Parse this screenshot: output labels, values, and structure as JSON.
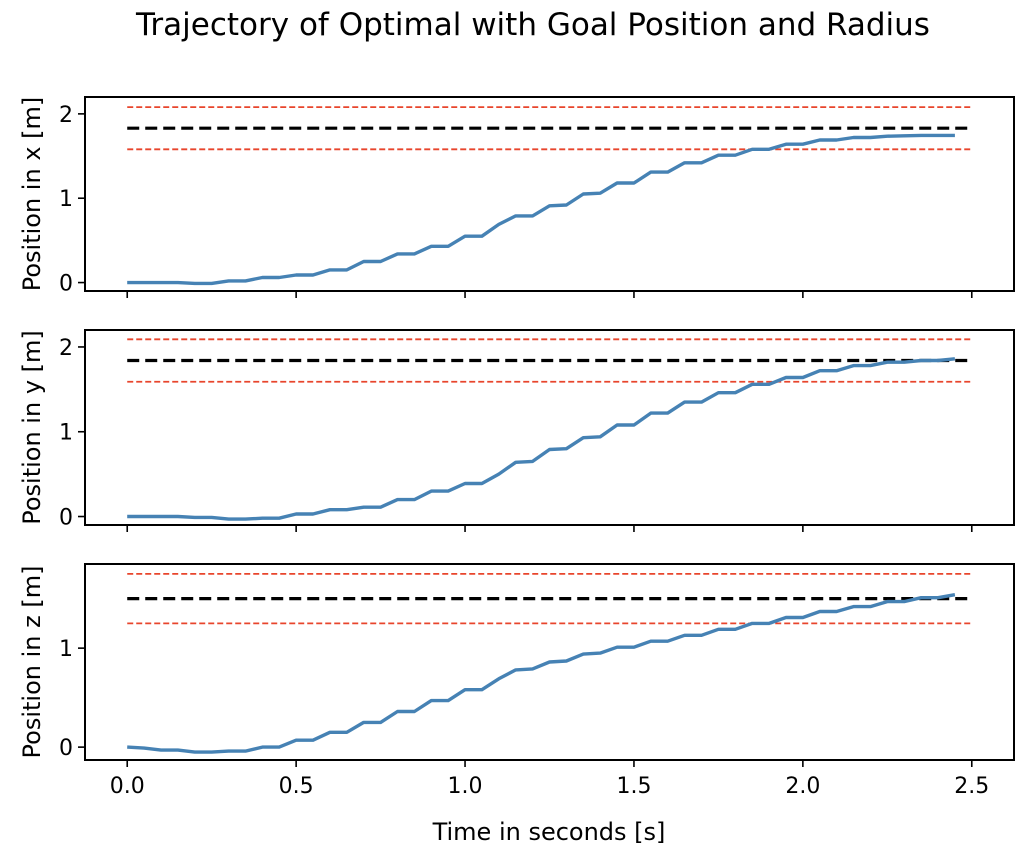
{
  "chart_data": {
    "type": "line",
    "title": "Trajectory of Optimal with Goal Position and Radius",
    "xlabel": "Time in seconds [s]",
    "x_ticks": [
      "0.0",
      "0.5",
      "1.0",
      "1.5",
      "2.0",
      "2.5"
    ],
    "x_tick_values": [
      0.0,
      0.5,
      1.0,
      1.5,
      2.0,
      2.5
    ],
    "xlim": [
      -0.125,
      2.625
    ],
    "grid": false,
    "colors": {
      "trajectory": "#4682b4",
      "goal": "#000000",
      "radius": "#e8452c"
    },
    "subplots": [
      {
        "ylabel": "Position in x [m]",
        "ylim": [
          -0.1,
          2.2
        ],
        "y_ticks": [
          "0",
          "1",
          "2"
        ],
        "y_tick_values": [
          0,
          1,
          2
        ],
        "goal": 1.83,
        "radius_lines": [
          1.58,
          2.08
        ],
        "x": [
          0.0,
          0.05,
          0.1,
          0.15,
          0.2,
          0.25,
          0.3,
          0.35,
          0.4,
          0.45,
          0.5,
          0.55,
          0.6,
          0.65,
          0.7,
          0.75,
          0.8,
          0.85,
          0.9,
          0.95,
          1.0,
          1.05,
          1.1,
          1.15,
          1.2,
          1.25,
          1.3,
          1.35,
          1.4,
          1.45,
          1.5,
          1.55,
          1.6,
          1.65,
          1.7,
          1.75,
          1.8,
          1.85,
          1.9,
          1.95,
          2.0,
          2.05,
          2.1,
          2.15,
          2.2,
          2.25,
          2.3,
          2.35,
          2.4,
          2.45
        ],
        "y": [
          0.0,
          0.0,
          0.0,
          0.0,
          -0.01,
          -0.01,
          0.02,
          0.02,
          0.06,
          0.06,
          0.09,
          0.09,
          0.15,
          0.15,
          0.25,
          0.25,
          0.34,
          0.34,
          0.43,
          0.43,
          0.55,
          0.55,
          0.69,
          0.79,
          0.79,
          0.91,
          0.92,
          1.05,
          1.06,
          1.18,
          1.18,
          1.31,
          1.31,
          1.42,
          1.42,
          1.51,
          1.51,
          1.58,
          1.58,
          1.64,
          1.64,
          1.69,
          1.69,
          1.72,
          1.72,
          1.735,
          1.74,
          1.745,
          1.745,
          1.745
        ]
      },
      {
        "ylabel": "Position in y [m]",
        "ylim": [
          -0.1,
          2.2
        ],
        "y_ticks": [
          "0",
          "1",
          "2"
        ],
        "y_tick_values": [
          0,
          1,
          2
        ],
        "goal": 1.84,
        "radius_lines": [
          1.59,
          2.09
        ],
        "x": [
          0.0,
          0.05,
          0.1,
          0.15,
          0.2,
          0.25,
          0.3,
          0.35,
          0.4,
          0.45,
          0.5,
          0.55,
          0.6,
          0.65,
          0.7,
          0.75,
          0.8,
          0.85,
          0.9,
          0.95,
          1.0,
          1.05,
          1.1,
          1.15,
          1.2,
          1.25,
          1.3,
          1.35,
          1.4,
          1.45,
          1.5,
          1.55,
          1.6,
          1.65,
          1.7,
          1.75,
          1.8,
          1.85,
          1.9,
          1.95,
          2.0,
          2.05,
          2.1,
          2.15,
          2.2,
          2.25,
          2.3,
          2.35,
          2.4,
          2.45
        ],
        "y": [
          0.0,
          0.0,
          0.0,
          0.0,
          -0.01,
          -0.01,
          -0.03,
          -0.03,
          -0.02,
          -0.02,
          0.03,
          0.03,
          0.08,
          0.08,
          0.11,
          0.11,
          0.2,
          0.2,
          0.3,
          0.3,
          0.39,
          0.39,
          0.5,
          0.64,
          0.65,
          0.79,
          0.8,
          0.93,
          0.94,
          1.08,
          1.08,
          1.22,
          1.22,
          1.35,
          1.35,
          1.46,
          1.46,
          1.56,
          1.56,
          1.64,
          1.64,
          1.72,
          1.72,
          1.78,
          1.78,
          1.82,
          1.82,
          1.84,
          1.84,
          1.86
        ]
      },
      {
        "ylabel": "Position in z [m]",
        "ylim": [
          -0.13,
          1.85
        ],
        "y_ticks": [
          "0",
          "1"
        ],
        "y_tick_values": [
          0,
          1
        ],
        "goal": 1.5,
        "radius_lines": [
          1.25,
          1.75
        ],
        "x": [
          0.0,
          0.05,
          0.1,
          0.15,
          0.2,
          0.25,
          0.3,
          0.35,
          0.4,
          0.45,
          0.5,
          0.55,
          0.6,
          0.65,
          0.7,
          0.75,
          0.8,
          0.85,
          0.9,
          0.95,
          1.0,
          1.05,
          1.1,
          1.15,
          1.2,
          1.25,
          1.3,
          1.35,
          1.4,
          1.45,
          1.5,
          1.55,
          1.6,
          1.65,
          1.7,
          1.75,
          1.8,
          1.85,
          1.9,
          1.95,
          2.0,
          2.05,
          2.1,
          2.15,
          2.2,
          2.25,
          2.3,
          2.35,
          2.4,
          2.45
        ],
        "y": [
          0.0,
          -0.01,
          -0.03,
          -0.03,
          -0.05,
          -0.05,
          -0.04,
          -0.04,
          0.0,
          0.0,
          0.07,
          0.07,
          0.15,
          0.15,
          0.25,
          0.25,
          0.36,
          0.36,
          0.47,
          0.47,
          0.58,
          0.58,
          0.69,
          0.78,
          0.79,
          0.86,
          0.87,
          0.94,
          0.95,
          1.01,
          1.01,
          1.07,
          1.07,
          1.13,
          1.13,
          1.19,
          1.19,
          1.25,
          1.25,
          1.31,
          1.31,
          1.37,
          1.37,
          1.42,
          1.42,
          1.47,
          1.47,
          1.51,
          1.51,
          1.54
        ]
      }
    ]
  }
}
